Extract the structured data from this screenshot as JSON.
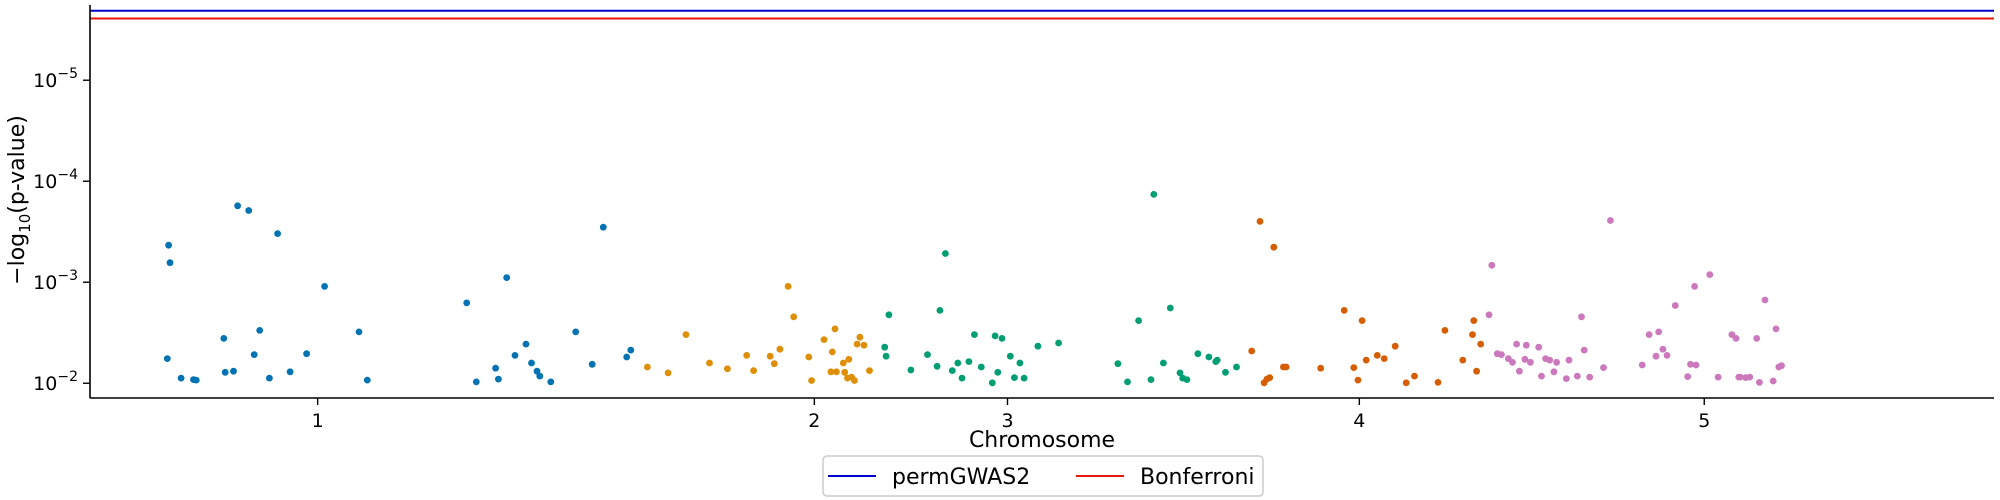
{
  "chart_data": {
    "type": "scatter",
    "title": "",
    "xlabel": "Chromosome",
    "ylabel": "−log10(p-value)",
    "y_scale": "log",
    "y_inverted": true,
    "ylim": [
      0.014,
      1.8e-06
    ],
    "xlim": [
      -12000000,
      126000000
    ],
    "grid": false,
    "legend_position": "bottom-center-outside",
    "x_ticks": [
      {
        "label": "1",
        "value": 4500000
      },
      {
        "label": "2",
        "value": 40500000
      },
      {
        "label": "3",
        "value": 54500000
      },
      {
        "label": "4",
        "value": 80000000
      },
      {
        "label": "5",
        "value": 105000000
      }
    ],
    "y_ticks": [
      {
        "label": "10",
        "exp": "−2",
        "value": 0.01
      },
      {
        "label": "10",
        "exp": "−3",
        "value": 0.001
      },
      {
        "label": "10",
        "exp": "−4",
        "value": 0.0001
      },
      {
        "label": "10",
        "exp": "−5",
        "value": 1e-05
      }
    ],
    "thresholds": [
      {
        "name": "permGWAS2",
        "value": 2.05e-06,
        "color": "#0000cc"
      },
      {
        "name": "Bonferroni",
        "value": 2.45e-06,
        "color": "#e8170d"
      }
    ],
    "series": [
      {
        "chromosome": "1",
        "color": "#0173b2",
        "x": [
          -6400000,
          -6300000,
          -6200000,
          -5400000,
          -4500000,
          -4300000,
          -2300000,
          -2200000,
          -1600000,
          -1300000,
          -500000,
          -100000,
          300000,
          1000000,
          1600000,
          2500000,
          3700000,
          5000000,
          7500000,
          8100000,
          15300000,
          16000000,
          17400000,
          17600000,
          18200000,
          18800000,
          19600000,
          20000000,
          20400000,
          20600000,
          21400000,
          23200000,
          24400000,
          25200000,
          26900000,
          27200000
        ],
        "y": [
          0.0057,
          0.00043,
          0.00064,
          0.0089,
          0.0092,
          0.0093,
          0.0036,
          0.0078,
          0.0076,
          0.000175,
          0.000195,
          0.0052,
          0.003,
          0.0089,
          0.00033,
          0.0077,
          0.0051,
          0.0011,
          0.0031,
          0.0093,
          0.0016,
          0.0097,
          0.0071,
          0.0091,
          0.0009,
          0.0053,
          0.0041,
          0.0063,
          0.0076,
          0.0085,
          0.0097,
          0.0031,
          0.0065,
          0.000285,
          0.0055,
          0.0047
        ]
      },
      {
        "chromosome": "2",
        "color": "#de8f05",
        "x": [
          28400000,
          29900000,
          31200000,
          32900000,
          34200000,
          35600000,
          36100000,
          37300000,
          37600000,
          38000000,
          38600000,
          39000000,
          40100000,
          40300000,
          41200000,
          41700000,
          41800000,
          42000000,
          42100000,
          42600000,
          42700000,
          42900000,
          43000000,
          43200000,
          43400000,
          43600000,
          43800000,
          44100000,
          44500000
        ],
        "y": [
          0.0069,
          0.0079,
          0.0033,
          0.0063,
          0.0072,
          0.0053,
          0.0075,
          0.0054,
          0.0064,
          0.0046,
          0.0011,
          0.0022,
          0.0055,
          0.0094,
          0.0037,
          0.0077,
          0.0049,
          0.0029,
          0.0077,
          0.0063,
          0.0078,
          0.0089,
          0.0058,
          0.0087,
          0.0094,
          0.0041,
          0.0035,
          0.0042,
          0.0075
        ]
      },
      {
        "chromosome": "3",
        "color": "#029e73",
        "x": [
          45600000,
          45700000,
          45900000,
          47500000,
          48700000,
          49400000,
          49600000,
          50000000,
          50500000,
          50900000,
          51200000,
          51700000,
          52100000,
          52600000,
          53400000,
          53600000,
          53800000,
          54100000,
          54700000,
          55000000,
          55400000,
          55700000,
          56700000,
          58200000,
          62500000,
          63200000,
          64000000,
          64900000,
          65100000,
          65800000,
          66300000,
          67000000,
          67200000,
          67500000,
          68300000,
          69100000,
          69600000,
          69700000,
          70300000,
          71100000
        ],
        "y": [
          0.0044,
          0.0054,
          0.0021,
          0.0074,
          0.0052,
          0.0068,
          0.0019,
          0.00052,
          0.0075,
          0.0063,
          0.0089,
          0.0061,
          0.0033,
          0.0069,
          0.0099,
          0.0034,
          0.0078,
          0.0036,
          0.0054,
          0.0088,
          0.0063,
          0.0089,
          0.0043,
          0.004,
          0.0064,
          0.0097,
          0.0024,
          0.0092,
          0.000135,
          0.0063,
          0.0018,
          0.0079,
          0.0089,
          0.0092,
          0.0051,
          0.0055,
          0.0061,
          0.0059,
          0.0078,
          0.0069
        ]
      },
      {
        "chromosome": "4",
        "color": "#d55e00",
        "x": [
          72200000,
          72800000,
          73100000,
          73300000,
          73500000,
          73800000,
          74500000,
          74700000,
          77200000,
          78900000,
          79600000,
          79900000,
          80200000,
          80500000,
          81300000,
          81800000,
          82600000,
          83400000,
          84000000,
          85700000,
          86200000,
          87500000,
          88200000,
          88300000,
          88500000,
          88800000
        ],
        "y": [
          0.0048,
          0.00025,
          0.0099,
          0.0091,
          0.0088,
          0.00045,
          0.0069,
          0.0069,
          0.0071,
          0.0019,
          0.007,
          0.0093,
          0.0024,
          0.0059,
          0.0053,
          0.0057,
          0.0043,
          0.0099,
          0.0085,
          0.0098,
          0.003,
          0.0059,
          0.0033,
          0.0024,
          0.0076,
          0.0041
        ]
      },
      {
        "chromosome": "5",
        "color": "#cc78bc",
        "x": [
          89400000,
          89600000,
          90000000,
          90300000,
          90800000,
          91100000,
          91400000,
          91600000,
          92000000,
          92100000,
          92400000,
          93000000,
          93200000,
          93500000,
          93800000,
          94100000,
          94300000,
          95000000,
          95200000,
          95800000,
          96100000,
          96300000,
          96700000,
          97700000,
          98200000,
          100500000,
          101000000,
          101500000,
          101700000,
          102000000,
          102300000,
          102900000,
          103800000,
          104000000,
          104300000,
          104400000,
          105400000,
          106000000,
          107000000,
          107300000,
          107500000,
          107600000,
          108000000,
          108300000,
          108800000,
          109000000,
          109400000,
          110000000,
          110200000,
          110400000,
          110600000
        ],
        "y": [
          0.0021,
          0.00068,
          0.0051,
          0.0052,
          0.0057,
          0.0062,
          0.0041,
          0.0076,
          0.0058,
          0.0042,
          0.0062,
          0.0044,
          0.0085,
          0.0057,
          0.0059,
          0.0077,
          0.0062,
          0.009,
          0.0059,
          0.0085,
          0.0022,
          0.0047,
          0.0087,
          0.007,
          0.000245,
          0.0066,
          0.0033,
          0.0054,
          0.0031,
          0.0046,
          0.0053,
          0.0017,
          0.0086,
          0.0065,
          0.0011,
          0.0066,
          0.00084,
          0.0087,
          0.0033,
          0.0036,
          0.0087,
          0.0087,
          0.0088,
          0.0087,
          0.0036,
          0.0098,
          0.0015,
          0.0095,
          0.0029,
          0.0069,
          0.0067
        ]
      }
    ]
  }
}
